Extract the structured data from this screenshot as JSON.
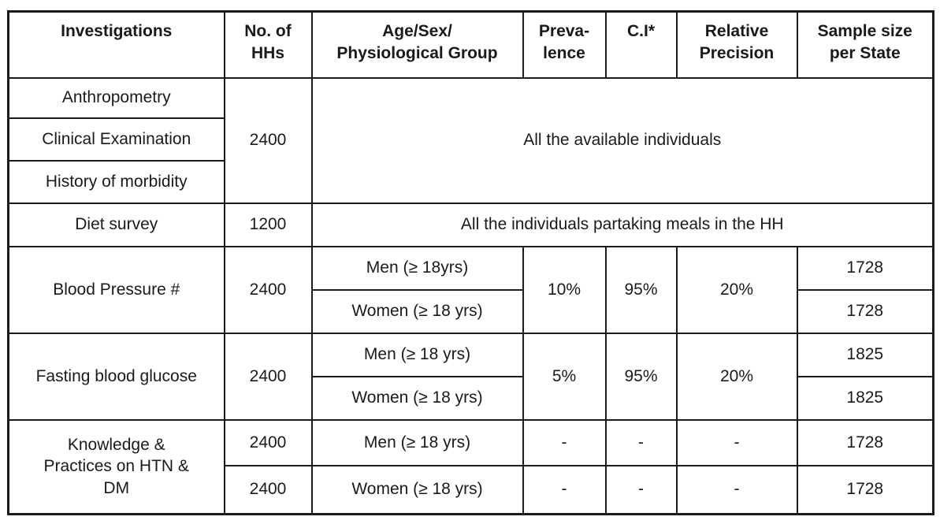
{
  "table": {
    "headers": [
      "Investigations",
      "No. of\nHHs",
      "Age/Sex/\nPhysiological Group",
      "Preva-\nlence",
      "C.I*",
      "Relative\nPrecision",
      "Sample size\nper State"
    ],
    "rows": [
      {
        "investigation": "Anthropometry",
        "no_of_hhs": "2400",
        "group": "All the available individuals"
      },
      {
        "investigation": "Clinical Examination"
      },
      {
        "investigation": "History of morbidity"
      },
      {
        "investigation": "Diet survey",
        "no_of_hhs": "1200",
        "group": "All the individuals partaking meals in the HH"
      },
      {
        "investigation": "Blood Pressure #",
        "no_of_hhs": "2400",
        "group": "Men (≥ 18yrs)",
        "prevalence": "10%",
        "ci": "95%",
        "relative_precision": "20%",
        "sample_size": "1728"
      },
      {
        "group": "Women (≥ 18 yrs)",
        "sample_size": "1728"
      },
      {
        "investigation": "Fasting blood glucose",
        "no_of_hhs": "2400",
        "group": "Men (≥ 18 yrs)",
        "prevalence": "5%",
        "ci": "95%",
        "relative_precision": "20%",
        "sample_size": "1825"
      },
      {
        "group": "Women (≥ 18 yrs)",
        "sample_size": "1825"
      },
      {
        "investigation": "Knowledge &\nPractices on HTN &\nDM",
        "no_of_hhs": "2400",
        "group": "Men (≥ 18 yrs)",
        "prevalence": "-",
        "ci": "-",
        "relative_precision": "-",
        "sample_size": "1728"
      },
      {
        "no_of_hhs": "2400",
        "group": "Women (≥ 18 yrs)",
        "prevalence": "-",
        "ci": "-",
        "relative_precision": "-",
        "sample_size": "1728"
      }
    ]
  }
}
